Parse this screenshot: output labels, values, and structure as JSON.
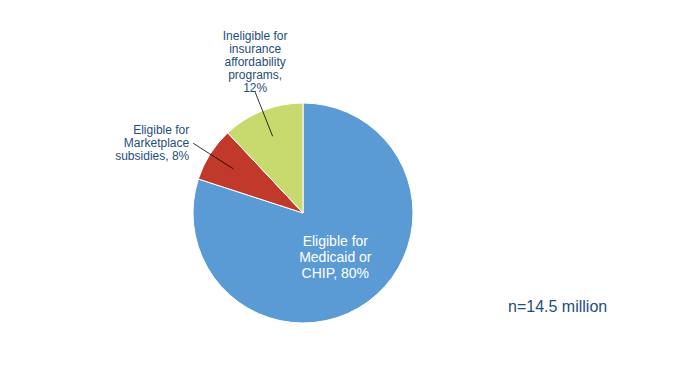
{
  "chart_data": {
    "type": "pie",
    "categories": [
      "Eligible for\nMedicaid or\nCHIP, 80%",
      "Eligible for\nMarketplace\nsubsidies, 8%",
      "Ineligible for\ninsurance\naffordability\nprograms,\n12%"
    ],
    "values": [
      80,
      8,
      12
    ],
    "colors": [
      "#5b9bd5",
      "#c0392b",
      "#c8d96e"
    ],
    "annotations": [
      "n=14.5 million"
    ]
  }
}
